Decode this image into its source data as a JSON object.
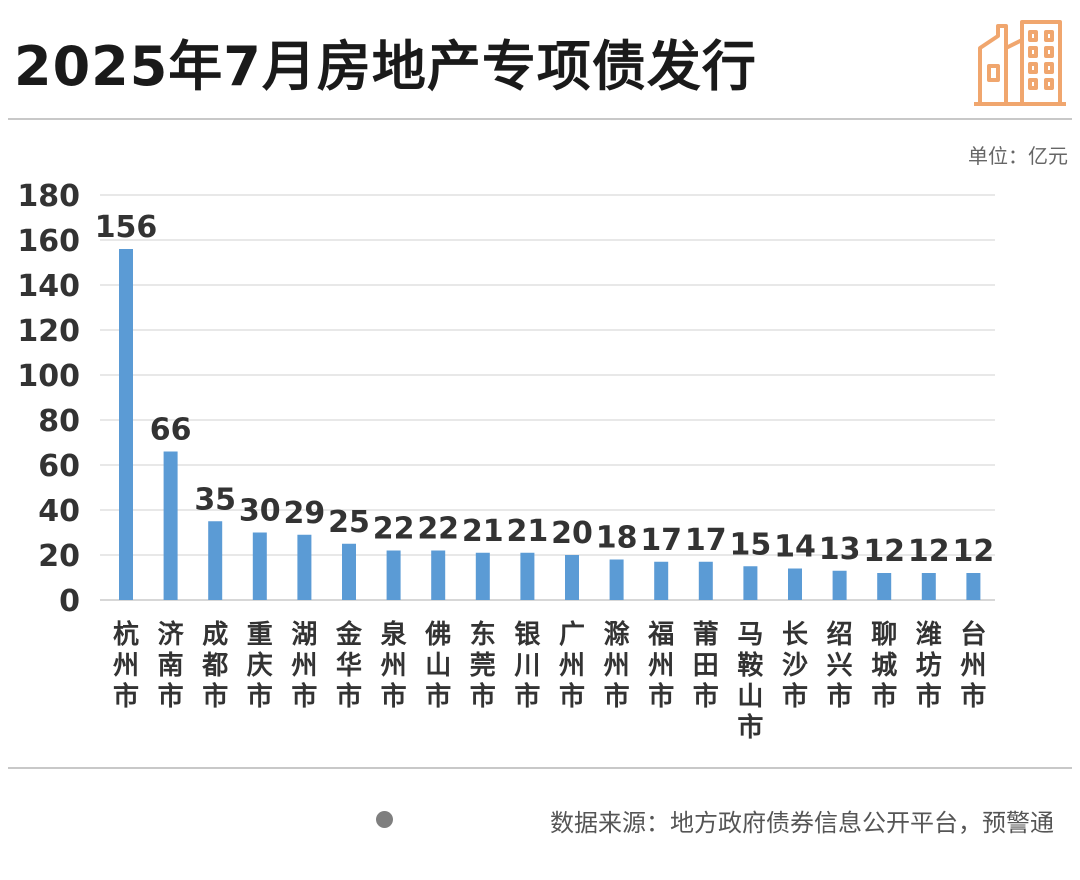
{
  "title": "2025年7月房地产专项债发行",
  "unit": "单位：亿元",
  "source": "数据来源：地方政府债券信息公开平台，预警通",
  "colors": {
    "bar": "#5b9bd5",
    "grid": "#d9d9d9",
    "logo": "#f0a66e"
  },
  "logo_icon": "buildings-icon",
  "chart_data": {
    "type": "bar",
    "title": "2025年7月房地产专项债发行",
    "ylabel": "单位：亿元",
    "ylim": [
      0,
      180
    ],
    "yticks": [
      "0",
      "20",
      "40",
      "60",
      "80",
      "100",
      "120",
      "140",
      "160",
      "180"
    ],
    "grid": true,
    "categories": [
      "杭州市",
      "济南市",
      "成都市",
      "重庆市",
      "湖州市",
      "金华市",
      "泉州市",
      "佛山市",
      "东莞市",
      "银川市",
      "广州市",
      "滁州市",
      "福州市",
      "莆田市",
      "马鞍山市",
      "长沙市",
      "绍兴市",
      "聊城市",
      "潍坊市",
      "台州市"
    ],
    "values": [
      156,
      66,
      35,
      30,
      29,
      25,
      22,
      22,
      21,
      21,
      20,
      18,
      17,
      17,
      15,
      14,
      13,
      12,
      12,
      12
    ]
  }
}
